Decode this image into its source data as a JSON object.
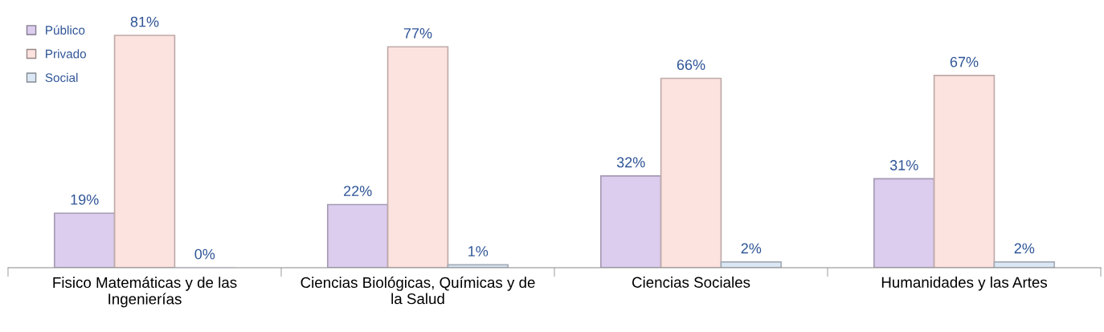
{
  "chart_data": {
    "type": "bar",
    "categories": [
      "Fisico Matemáticas y de las\nIngenierías",
      "Ciencias Biológicas, Químicas y de\nla Salud",
      "Ciencias Sociales",
      "Humanidades y las Artes"
    ],
    "series": [
      {
        "name": "Público",
        "color": "#dccdef",
        "values": [
          19,
          22,
          32,
          31
        ],
        "value_labels": [
          "19%",
          "22%",
          "32%",
          "31%"
        ]
      },
      {
        "name": "Privado",
        "color": "#fde3e0",
        "values": [
          81,
          77,
          66,
          67
        ],
        "value_labels": [
          "81%",
          "77%",
          "66%",
          "67%"
        ]
      },
      {
        "name": "Social",
        "color": "#dbe7f4",
        "values": [
          0,
          1,
          2,
          2
        ],
        "value_labels": [
          "0%",
          "1%",
          "2%",
          "2%"
        ]
      }
    ],
    "legend": "top left",
    "grid": false
  }
}
